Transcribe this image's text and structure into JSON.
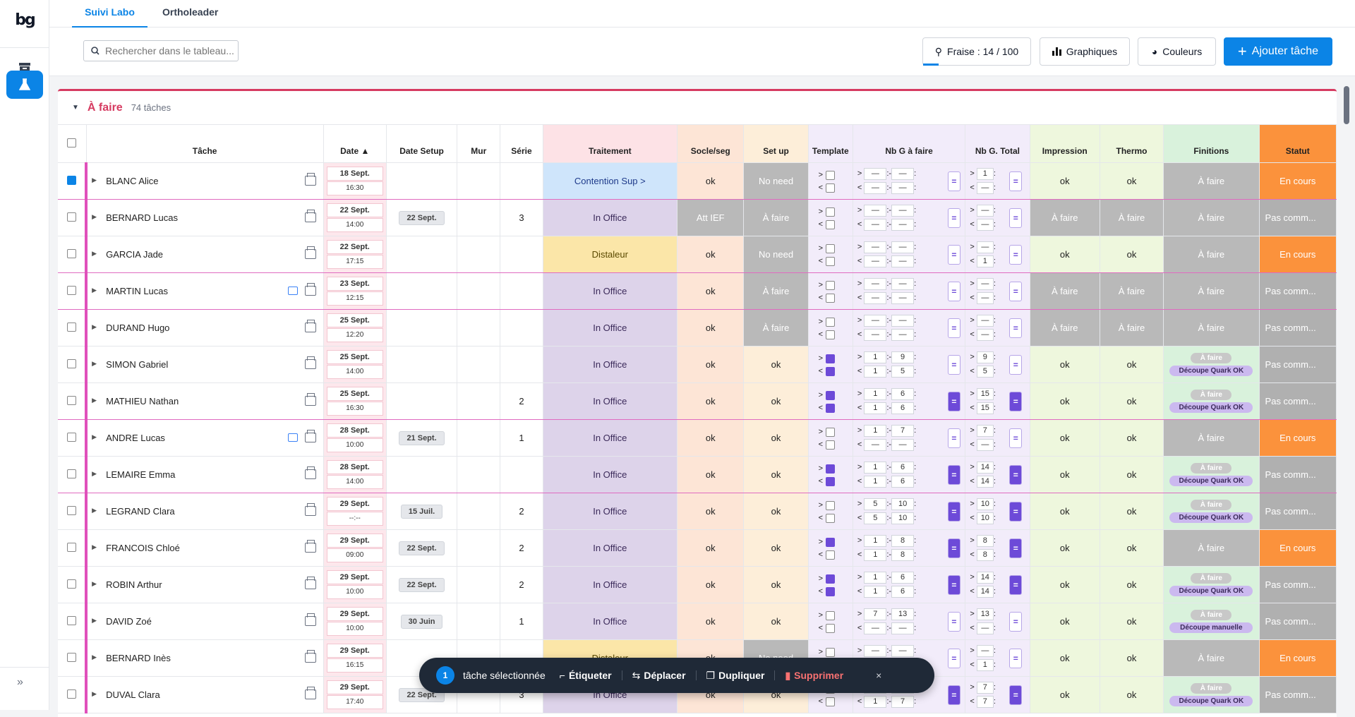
{
  "sidebar": {
    "logo": "bg",
    "icons": [
      "box-icon",
      "flask-icon"
    ],
    "expand": "»"
  },
  "tabs": [
    "Suivi Labo",
    "Ortholeader"
  ],
  "toolbar": {
    "search_placeholder": "Rechercher dans le tableau...",
    "fraise": "Fraise : 14 / 100",
    "fraise_progress": 0.14,
    "graphiques": "Graphiques",
    "couleurs": "Couleurs",
    "ajouter": "Ajouter tâche"
  },
  "group": {
    "title": "À faire",
    "count": "74 tâches"
  },
  "columns": [
    "Tâche",
    "Date ▲",
    "Date Setup",
    "Mur",
    "Série",
    "Traitement",
    "Socle/seg",
    "Set up",
    "Template",
    "Nb G à faire",
    "Nb G. Total",
    "Impression",
    "Thermo",
    "Finitions",
    "Statut"
  ],
  "rows": [
    {
      "name": "BLANC Alice",
      "d1": "18 Sept.",
      "d2": "16:30",
      "setup": "",
      "serie": "",
      "trait": "Contention Sup >",
      "trait_c": "blue",
      "socle": "ok",
      "socle_c": "socle",
      "set": "No need",
      "set_c": "grey",
      "t1": false,
      "t2": false,
      "a": [
        "—",
        "—",
        "—",
        "—"
      ],
      "eqA": false,
      "b": [
        "1",
        "—"
      ],
      "eqB": false,
      "imp": "ok",
      "imp_c": "imp",
      "th": "ok",
      "th_c": "imp",
      "fin": "À faire",
      "fin_c": "grey",
      "stat": "En cours",
      "stat_c": "orange",
      "checked": true,
      "magenta": true,
      "cmt": false
    },
    {
      "name": "BERNARD Lucas",
      "d1": "22 Sept.",
      "d2": "14:00",
      "setup": "22 Sept.",
      "serie": "3",
      "trait": "In Office",
      "trait_c": "purple",
      "socle": "Att IEF",
      "socle_c": "grey",
      "set": "À faire",
      "set_c": "grey",
      "t1": false,
      "t2": false,
      "a": [
        "—",
        "—",
        "—",
        "—"
      ],
      "eqA": false,
      "b": [
        "—",
        "—"
      ],
      "eqB": false,
      "imp": "À faire",
      "imp_c": "grey",
      "th": "À faire",
      "th_c": "grey",
      "fin": "À faire",
      "fin_c": "grey",
      "stat": "Pas comm...",
      "stat_c": "grey",
      "checked": false,
      "magenta": false,
      "cmt": false
    },
    {
      "name": "GARCIA Jade",
      "d1": "22 Sept.",
      "d2": "17:15",
      "setup": "",
      "serie": "",
      "trait": "Distaleur",
      "trait_c": "yellow",
      "socle": "ok",
      "socle_c": "socle",
      "set": "No need",
      "set_c": "grey",
      "t1": false,
      "t2": false,
      "a": [
        "—",
        "—",
        "—",
        "—"
      ],
      "eqA": false,
      "b": [
        "—",
        "1"
      ],
      "eqB": false,
      "imp": "ok",
      "imp_c": "imp",
      "th": "ok",
      "th_c": "imp",
      "fin": "À faire",
      "fin_c": "grey",
      "stat": "En cours",
      "stat_c": "orange",
      "checked": false,
      "magenta": true,
      "cmt": false
    },
    {
      "name": "MARTIN Lucas",
      "d1": "23 Sept.",
      "d2": "12:15",
      "setup": "",
      "serie": "",
      "trait": "In Office",
      "trait_c": "purple",
      "socle": "ok",
      "socle_c": "socle",
      "set": "À faire",
      "set_c": "grey",
      "t1": false,
      "t2": false,
      "a": [
        "—",
        "—",
        "—",
        "—"
      ],
      "eqA": false,
      "b": [
        "—",
        "—"
      ],
      "eqB": false,
      "imp": "À faire",
      "imp_c": "grey",
      "th": "À faire",
      "th_c": "grey",
      "fin": "À faire",
      "fin_c": "grey",
      "stat": "Pas comm...",
      "stat_c": "grey",
      "checked": false,
      "magenta": true,
      "cmt": true
    },
    {
      "name": "DURAND Hugo",
      "d1": "25 Sept.",
      "d2": "12:20",
      "setup": "",
      "serie": "",
      "trait": "In Office",
      "trait_c": "purple",
      "socle": "ok",
      "socle_c": "socle",
      "set": "À faire",
      "set_c": "grey",
      "t1": false,
      "t2": false,
      "a": [
        "—",
        "—",
        "—",
        "—"
      ],
      "eqA": false,
      "b": [
        "—",
        "—"
      ],
      "eqB": false,
      "imp": "À faire",
      "imp_c": "grey",
      "th": "À faire",
      "th_c": "grey",
      "fin": "À faire",
      "fin_c": "grey",
      "stat": "Pas comm...",
      "stat_c": "grey",
      "checked": false,
      "magenta": false,
      "cmt": false
    },
    {
      "name": "SIMON Gabriel",
      "d1": "25 Sept.",
      "d2": "14:00",
      "setup": "",
      "serie": "",
      "trait": "In Office",
      "trait_c": "purple",
      "socle": "ok",
      "socle_c": "socle",
      "set": "ok",
      "set_c": "setup",
      "t1": true,
      "t2": true,
      "a": [
        "1",
        "9",
        "1",
        "5"
      ],
      "eqA": false,
      "b": [
        "9",
        "5"
      ],
      "eqB": false,
      "imp": "ok",
      "imp_c": "imp",
      "th": "ok",
      "th_c": "imp",
      "fin": "pills",
      "pill2": "Découpe Quark OK",
      "fin_c": "fin",
      "stat": "Pas comm...",
      "stat_c": "grey",
      "checked": false,
      "magenta": false,
      "cmt": false
    },
    {
      "name": "MATHIEU Nathan",
      "d1": "25 Sept.",
      "d2": "16:30",
      "setup": "",
      "serie": "2",
      "trait": "In Office",
      "trait_c": "purple",
      "socle": "ok",
      "socle_c": "socle",
      "set": "ok",
      "set_c": "setup",
      "t1": true,
      "t2": true,
      "a": [
        "1",
        "6",
        "1",
        "6"
      ],
      "eqA": true,
      "b": [
        "15",
        "15"
      ],
      "eqB": true,
      "imp": "ok",
      "imp_c": "imp",
      "th": "ok",
      "th_c": "imp",
      "fin": "pills",
      "pill2": "Découpe Quark OK",
      "fin_c": "fin",
      "stat": "Pas comm...",
      "stat_c": "grey",
      "checked": false,
      "magenta": true,
      "cmt": false
    },
    {
      "name": "ANDRE Lucas",
      "d1": "28 Sept.",
      "d2": "10:00",
      "setup": "21 Sept.",
      "serie": "1",
      "trait": "In Office",
      "trait_c": "purple",
      "socle": "ok",
      "socle_c": "socle",
      "set": "ok",
      "set_c": "setup",
      "t1": false,
      "t2": false,
      "a": [
        "1",
        "7",
        "—",
        "—"
      ],
      "eqA": false,
      "b": [
        "7",
        "—"
      ],
      "eqB": false,
      "imp": "ok",
      "imp_c": "imp",
      "th": "ok",
      "th_c": "imp",
      "fin": "À faire",
      "fin_c": "grey",
      "stat": "En cours",
      "stat_c": "orange",
      "checked": false,
      "magenta": false,
      "cmt": true
    },
    {
      "name": "LEMAIRE Emma",
      "d1": "28 Sept.",
      "d2": "14:00",
      "setup": "",
      "serie": "",
      "trait": "In Office",
      "trait_c": "purple",
      "socle": "ok",
      "socle_c": "socle",
      "set": "ok",
      "set_c": "setup",
      "t1": true,
      "t2": true,
      "a": [
        "1",
        "6",
        "1",
        "6"
      ],
      "eqA": true,
      "b": [
        "14",
        "14"
      ],
      "eqB": true,
      "imp": "ok",
      "imp_c": "imp",
      "th": "ok",
      "th_c": "imp",
      "fin": "pills",
      "pill2": "Découpe Quark OK",
      "fin_c": "fin",
      "stat": "Pas comm...",
      "stat_c": "grey",
      "checked": false,
      "magenta": true,
      "cmt": false
    },
    {
      "name": "LEGRAND Clara",
      "d1": "29 Sept.",
      "d2": "--:--",
      "setup": "15 Juil.",
      "serie": "2",
      "trait": "In Office",
      "trait_c": "purple",
      "socle": "ok",
      "socle_c": "socle",
      "set": "ok",
      "set_c": "setup",
      "t1": false,
      "t2": false,
      "a": [
        "5",
        "10",
        "5",
        "10"
      ],
      "eqA": true,
      "b": [
        "10",
        "10"
      ],
      "eqB": true,
      "imp": "ok",
      "imp_c": "imp",
      "th": "ok",
      "th_c": "imp",
      "fin": "pills",
      "pill2": "Découpe Quark OK",
      "fin_c": "fin",
      "stat": "Pas comm...",
      "stat_c": "grey",
      "checked": false,
      "magenta": false,
      "cmt": false
    },
    {
      "name": "FRANCOIS Chloé",
      "d1": "29 Sept.",
      "d2": "09:00",
      "setup": "22 Sept.",
      "serie": "2",
      "trait": "In Office",
      "trait_c": "purple",
      "socle": "ok",
      "socle_c": "socle",
      "set": "ok",
      "set_c": "setup",
      "t1": true,
      "t2": false,
      "a": [
        "1",
        "8",
        "1",
        "8"
      ],
      "eqA": true,
      "b": [
        "8",
        "8"
      ],
      "eqB": true,
      "imp": "ok",
      "imp_c": "imp",
      "th": "ok",
      "th_c": "imp",
      "fin": "À faire",
      "fin_c": "grey",
      "stat": "En cours",
      "stat_c": "orange",
      "checked": false,
      "magenta": false,
      "cmt": false
    },
    {
      "name": "ROBIN Arthur",
      "d1": "29 Sept.",
      "d2": "10:00",
      "setup": "22 Sept.",
      "serie": "2",
      "trait": "In Office",
      "trait_c": "purple",
      "socle": "ok",
      "socle_c": "socle",
      "set": "ok",
      "set_c": "setup",
      "t1": true,
      "t2": true,
      "a": [
        "1",
        "6",
        "1",
        "6"
      ],
      "eqA": true,
      "b": [
        "14",
        "14"
      ],
      "eqB": true,
      "imp": "ok",
      "imp_c": "imp",
      "th": "ok",
      "th_c": "imp",
      "fin": "pills",
      "pill2": "Découpe Quark OK",
      "fin_c": "fin",
      "stat": "Pas comm...",
      "stat_c": "grey",
      "checked": false,
      "magenta": false,
      "cmt": false
    },
    {
      "name": "DAVID Zoé",
      "d1": "29 Sept.",
      "d2": "10:00",
      "setup": "30 Juin",
      "serie": "1",
      "trait": "In Office",
      "trait_c": "purple",
      "socle": "ok",
      "socle_c": "socle",
      "set": "ok",
      "set_c": "setup",
      "t1": false,
      "t2": false,
      "a": [
        "7",
        "13",
        "—",
        "—"
      ],
      "eqA": false,
      "b": [
        "13",
        "—"
      ],
      "eqB": false,
      "imp": "ok",
      "imp_c": "imp",
      "th": "ok",
      "th_c": "imp",
      "fin": "pills",
      "pill2": "Découpe manuelle",
      "fin_c": "fin",
      "stat": "Pas comm...",
      "stat_c": "grey",
      "checked": false,
      "magenta": false,
      "cmt": false
    },
    {
      "name": "BERNARD Inès",
      "d1": "29 Sept.",
      "d2": "16:15",
      "setup": "",
      "serie": "",
      "trait": "Distaleur",
      "trait_c": "yellow",
      "socle": "ok",
      "socle_c": "socle",
      "set": "No need",
      "set_c": "grey",
      "t1": false,
      "t2": false,
      "a": [
        "—",
        "—",
        "—",
        "—"
      ],
      "eqA": false,
      "b": [
        "—",
        "1"
      ],
      "eqB": false,
      "imp": "ok",
      "imp_c": "imp",
      "th": "ok",
      "th_c": "imp",
      "fin": "À faire",
      "fin_c": "grey",
      "stat": "En cours",
      "stat_c": "orange",
      "checked": false,
      "magenta": false,
      "cmt": false
    },
    {
      "name": "DUVAL Clara",
      "d1": "29 Sept.",
      "d2": "17:40",
      "setup": "22 Sept.",
      "serie": "3",
      "trait": "In Office",
      "trait_c": "purple",
      "socle": "ok",
      "socle_c": "socle",
      "set": "ok",
      "set_c": "setup",
      "t1": false,
      "t2": false,
      "a": [
        "1",
        "7",
        "1",
        "7"
      ],
      "eqA": true,
      "b": [
        "7",
        "7"
      ],
      "eqB": true,
      "imp": "ok",
      "imp_c": "imp",
      "th": "ok",
      "th_c": "imp",
      "fin": "pills",
      "pill2": "Découpe Quark OK",
      "fin_c": "fin",
      "stat": "Pas comm...",
      "stat_c": "grey",
      "checked": false,
      "magenta": false,
      "cmt": false
    }
  ],
  "pill_afaire": "À faire",
  "template_signs": [
    ">",
    "<"
  ],
  "nb_signs": [
    "-",
    ":"
  ],
  "eq": "=",
  "floatbar": {
    "count": "1",
    "label": "tâche sélectionnée",
    "etiqueter": "Étiqueter",
    "deplacer": "Déplacer",
    "dupliquer": "Dupliquer",
    "supprimer": "Supprimer",
    "close": "×"
  }
}
